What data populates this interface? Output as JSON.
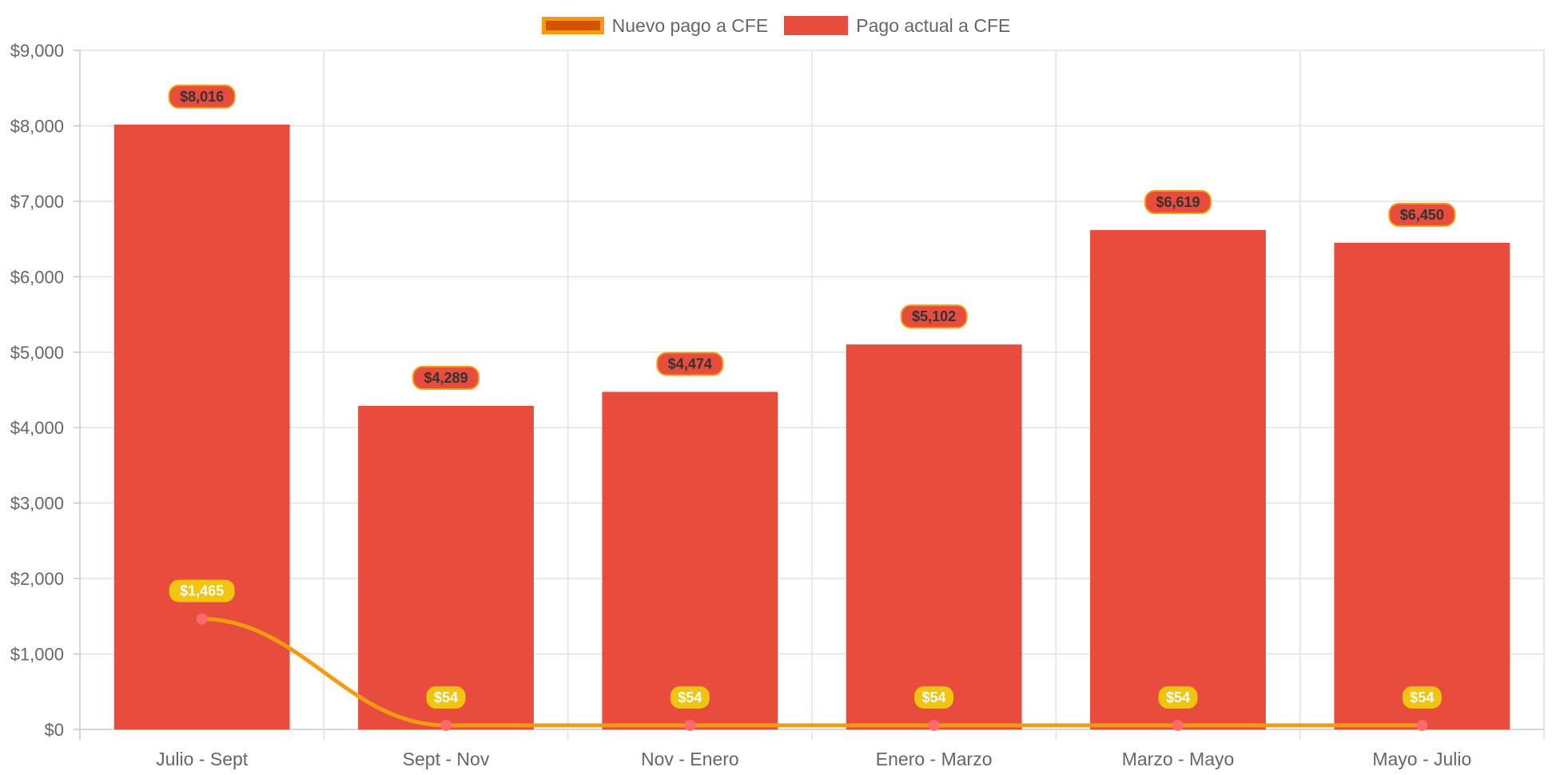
{
  "chart_data": {
    "type": "bar",
    "title": "",
    "xlabel": "",
    "ylabel": "",
    "ylim": [
      0,
      9000
    ],
    "y_ticks": [
      "$0",
      "$1,000",
      "$2,000",
      "$3,000",
      "$4,000",
      "$5,000",
      "$6,000",
      "$7,000",
      "$8,000",
      "$9,000"
    ],
    "grid": true,
    "legend_position": "top-center",
    "categories": [
      "Julio - Sept",
      "Sept - Nov",
      "Nov - Enero",
      "Enero - Marzo",
      "Marzo - Mayo",
      "Mayo - Julio"
    ],
    "series": [
      {
        "name": "Nuevo pago a CFE",
        "type": "line",
        "color": "#f39c12",
        "swatch_fill": "#d35400",
        "point_color": "#ff6b6b",
        "label_color": "#f1c40f",
        "values": [
          1465,
          54,
          54,
          54,
          54,
          54
        ],
        "labels": [
          "$1,465",
          "$54",
          "$54",
          "$54",
          "$54",
          "$54"
        ]
      },
      {
        "name": "Pago actual a CFE",
        "type": "bar",
        "color": "#e74c3c",
        "label_border": "#f39c12",
        "label_text_color": "#333333",
        "values": [
          8016,
          4289,
          4474,
          5102,
          6619,
          6450
        ],
        "labels": [
          "$8,016",
          "$4,289",
          "$4,474",
          "$5,102",
          "$6,619",
          "$6,450"
        ]
      }
    ]
  }
}
